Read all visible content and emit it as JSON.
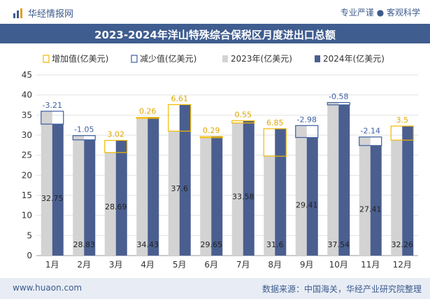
{
  "header": {
    "brand": "华经情报网",
    "tagline": "专业严谨 ● 客观科学"
  },
  "title": "2023-2024年洋山特殊综合保税区月度进出口总额",
  "footer": {
    "url": "www.huaon.com",
    "source": "数据来源：中国海关，华经产业研究院整理"
  },
  "colors": {
    "bar2023": "#d3d3d3",
    "bar2024": "#4a5f8f",
    "increase": "#f2b800",
    "decrease": "#3d5fa0",
    "titlebar": "#3f5d8f"
  },
  "chart_data": {
    "type": "bar",
    "categories": [
      "1月",
      "2月",
      "3月",
      "4月",
      "5月",
      "6月",
      "7月",
      "8月",
      "9月",
      "10月",
      "11月",
      "12月"
    ],
    "series": [
      {
        "name": "2023年(亿美元)",
        "values": [
          35.96,
          29.88,
          25.67,
          34.17,
          30.99,
          29.36,
          33.03,
          24.75,
          32.39,
          38.12,
          29.55,
          28.76
        ]
      },
      {
        "name": "2024年(亿美元)",
        "values": [
          32.75,
          28.83,
          28.69,
          34.43,
          37.6,
          29.65,
          33.58,
          31.6,
          29.41,
          37.54,
          27.41,
          32.26
        ]
      }
    ],
    "changes": [
      -3.21,
      -1.05,
      3.02,
      0.26,
      6.61,
      0.29,
      0.55,
      6.85,
      -2.98,
      -0.58,
      -2.14,
      3.5
    ],
    "change_labels": [
      "-3.21",
      "-1.05",
      "3.02",
      "0.26",
      "6.61",
      "0.29",
      "0.55",
      "6.85",
      "-2.98",
      "-0.58",
      "-2.14",
      "3.5"
    ],
    "value_labels_2024": [
      "32.75",
      "28.83",
      "28.69",
      "34.43",
      "37.6",
      "29.65",
      "33.58",
      "31.6",
      "29.41",
      "37.54",
      "27.41",
      "32.26"
    ],
    "legend": [
      "增加值(亿美元)",
      "减少值(亿美元)",
      "2023年(亿美元)",
      "2024年(亿美元)"
    ],
    "yticks": [
      "0",
      "5",
      "10",
      "15",
      "20",
      "25",
      "30",
      "35",
      "40",
      "45"
    ],
    "ylim": [
      0,
      45
    ],
    "grid": true,
    "legend_position": "top"
  }
}
